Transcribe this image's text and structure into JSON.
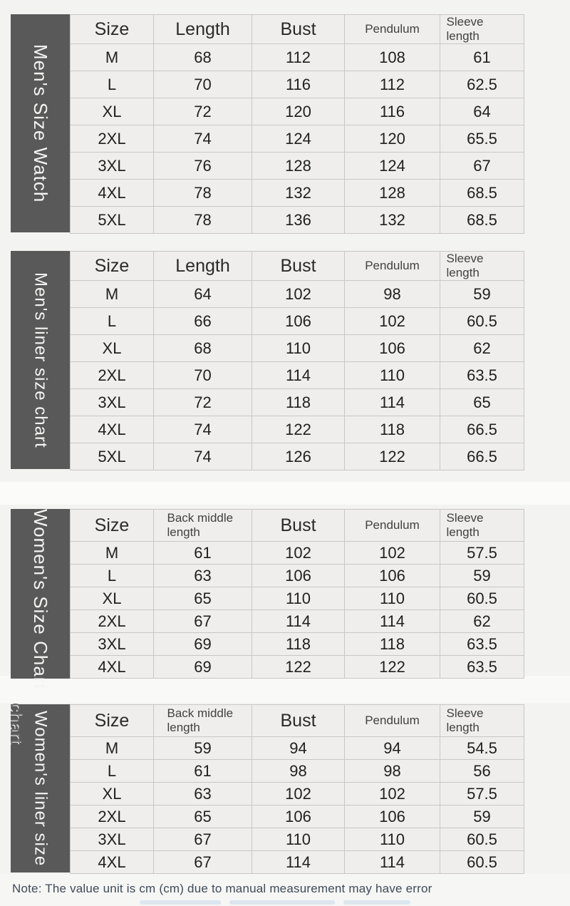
{
  "note": "Note: The value unit is cm (cm) due to manual measurement may have error",
  "colors": {
    "side_bar": "#595959",
    "cell_background": "#efeeed",
    "cell_border": "#c8c7c6",
    "page_background": "#f3f3f2"
  },
  "tables": [
    {
      "label": "Men's Size Watch",
      "columns": [
        "Size",
        "Length",
        "Bust",
        "Pendulum",
        "Sleeve length"
      ],
      "rows": [
        [
          "M",
          "68",
          "112",
          "108",
          "61"
        ],
        [
          "L",
          "70",
          "116",
          "112",
          "62.5"
        ],
        [
          "XL",
          "72",
          "120",
          "116",
          "64"
        ],
        [
          "2XL",
          "74",
          "124",
          "120",
          "65.5"
        ],
        [
          "3XL",
          "76",
          "128",
          "124",
          "67"
        ],
        [
          "4XL",
          "78",
          "132",
          "128",
          "68.5"
        ],
        [
          "5XL",
          "78",
          "136",
          "132",
          "68.5"
        ]
      ]
    },
    {
      "label": "Men's liner size chart",
      "columns": [
        "Size",
        "Length",
        "Bust",
        "Pendulum",
        "Sleeve length"
      ],
      "rows": [
        [
          "M",
          "64",
          "102",
          "98",
          "59"
        ],
        [
          "L",
          "66",
          "106",
          "102",
          "60.5"
        ],
        [
          "XL",
          "68",
          "110",
          "106",
          "62"
        ],
        [
          "2XL",
          "70",
          "114",
          "110",
          "63.5"
        ],
        [
          "3XL",
          "72",
          "118",
          "114",
          "65"
        ],
        [
          "4XL",
          "74",
          "122",
          "118",
          "66.5"
        ],
        [
          "5XL",
          "74",
          "126",
          "122",
          "66.5"
        ]
      ]
    },
    {
      "label": "Women's Size Chart",
      "columns": [
        "Size",
        "Back middle length",
        "Bust",
        "Pendulum",
        "Sleeve length"
      ],
      "rows": [
        [
          "M",
          "61",
          "102",
          "102",
          "57.5"
        ],
        [
          "L",
          "63",
          "106",
          "106",
          "59"
        ],
        [
          "XL",
          "65",
          "110",
          "110",
          "60.5"
        ],
        [
          "2XL",
          "67",
          "114",
          "114",
          "62"
        ],
        [
          "3XL",
          "69",
          "118",
          "118",
          "63.5"
        ],
        [
          "4XL",
          "69",
          "122",
          "122",
          "63.5"
        ]
      ]
    },
    {
      "label_main": "Women's liner size",
      "label_overflow": "chart",
      "columns": [
        "Size",
        "Back middle length",
        "Bust",
        "Pendulum",
        "Sleeve length"
      ],
      "rows": [
        [
          "M",
          "59",
          "94",
          "94",
          "54.5"
        ],
        [
          "L",
          "61",
          "98",
          "98",
          "56"
        ],
        [
          "XL",
          "63",
          "102",
          "102",
          "57.5"
        ],
        [
          "2XL",
          "65",
          "106",
          "106",
          "59"
        ],
        [
          "3XL",
          "67",
          "110",
          "110",
          "60.5"
        ],
        [
          "4XL",
          "67",
          "114",
          "114",
          "60.5"
        ]
      ]
    }
  ]
}
